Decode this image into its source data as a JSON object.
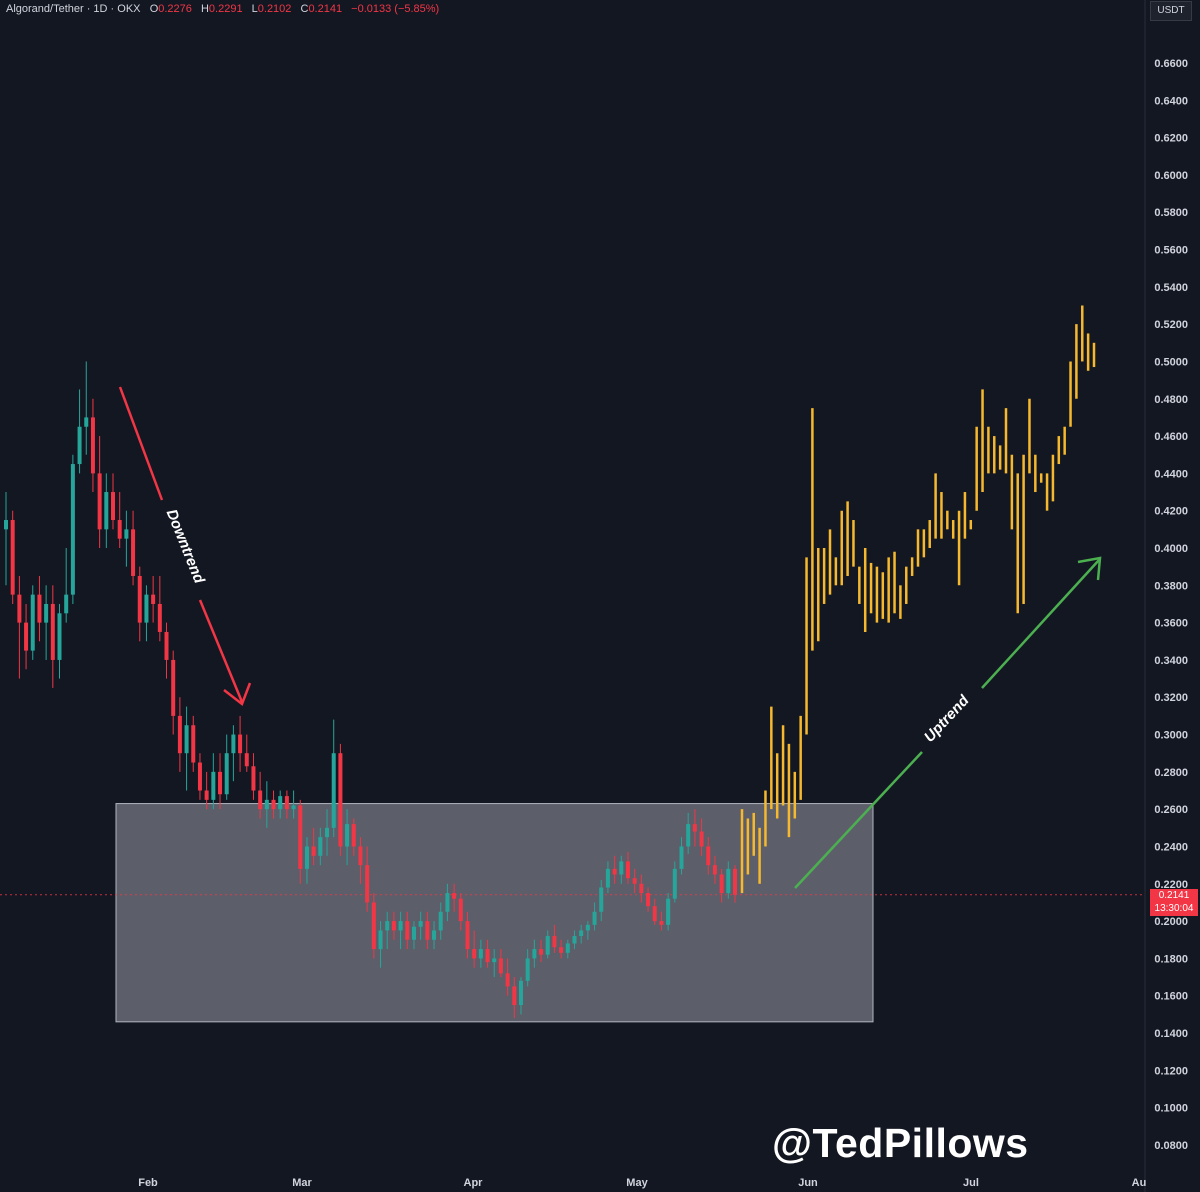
{
  "header": {
    "symbol": "Algorand/Tether · 1D · OKX",
    "o_label": "O",
    "o_value": "0.2276",
    "h_label": "H",
    "h_value": "0.2291",
    "l_label": "L",
    "l_value": "0.2102",
    "c_label": "C",
    "c_value": "0.2141",
    "change": "−0.0133 (−5.85%)"
  },
  "unit_label": "USDT",
  "last_price": {
    "value": "0.2141",
    "countdown": "13:30:04",
    "color": "#f23645"
  },
  "watermark": "@TedPillows",
  "colors": {
    "up": "#26a69a",
    "down": "#f23645",
    "projection": "#f5b82e",
    "downtrend_arrow": "#f23645",
    "uptrend_arrow": "#4caf50",
    "range_box": "#787b86"
  },
  "chart_data": {
    "type": "candlestick",
    "ylim": [
      0.07,
      0.69
    ],
    "y_ticks": [
      "0.6600",
      "0.6400",
      "0.6200",
      "0.6000",
      "0.5800",
      "0.5600",
      "0.5400",
      "0.5200",
      "0.5000",
      "0.4800",
      "0.4600",
      "0.4400",
      "0.4200",
      "0.4000",
      "0.3800",
      "0.3600",
      "0.3400",
      "0.3200",
      "0.3000",
      "0.2800",
      "0.2600",
      "0.2400",
      "0.2200",
      "0.2000",
      "0.1800",
      "0.1600",
      "0.1400",
      "0.1200",
      "0.1000",
      "0.0800"
    ],
    "x_ticks": [
      "Feb",
      "Mar",
      "Apr",
      "May",
      "Jun",
      "Jul",
      "Au"
    ],
    "annotations": [
      {
        "text": "Downtrend",
        "kind": "arrow",
        "direction": "down"
      },
      {
        "text": "Uptrend",
        "kind": "arrow",
        "direction": "up"
      }
    ],
    "range_box": {
      "from": "Feb",
      "to": "Jun",
      "high": 0.263,
      "low": 0.146
    },
    "historical": [
      {
        "o": 0.41,
        "h": 0.43,
        "l": 0.38,
        "c": 0.415
      },
      {
        "o": 0.415,
        "h": 0.42,
        "l": 0.37,
        "c": 0.375
      },
      {
        "o": 0.375,
        "h": 0.385,
        "l": 0.33,
        "c": 0.36
      },
      {
        "o": 0.36,
        "h": 0.37,
        "l": 0.335,
        "c": 0.345
      },
      {
        "o": 0.345,
        "h": 0.38,
        "l": 0.34,
        "c": 0.375
      },
      {
        "o": 0.375,
        "h": 0.385,
        "l": 0.35,
        "c": 0.36
      },
      {
        "o": 0.36,
        "h": 0.38,
        "l": 0.34,
        "c": 0.37
      },
      {
        "o": 0.37,
        "h": 0.38,
        "l": 0.325,
        "c": 0.34
      },
      {
        "o": 0.34,
        "h": 0.37,
        "l": 0.33,
        "c": 0.365
      },
      {
        "o": 0.365,
        "h": 0.4,
        "l": 0.36,
        "c": 0.375
      },
      {
        "o": 0.375,
        "h": 0.45,
        "l": 0.37,
        "c": 0.445
      },
      {
        "o": 0.445,
        "h": 0.485,
        "l": 0.44,
        "c": 0.465
      },
      {
        "o": 0.465,
        "h": 0.5,
        "l": 0.45,
        "c": 0.47
      },
      {
        "o": 0.47,
        "h": 0.48,
        "l": 0.43,
        "c": 0.44
      },
      {
        "o": 0.44,
        "h": 0.46,
        "l": 0.4,
        "c": 0.41
      },
      {
        "o": 0.41,
        "h": 0.44,
        "l": 0.4,
        "c": 0.43
      },
      {
        "o": 0.43,
        "h": 0.44,
        "l": 0.41,
        "c": 0.415
      },
      {
        "o": 0.415,
        "h": 0.43,
        "l": 0.4,
        "c": 0.405
      },
      {
        "o": 0.405,
        "h": 0.42,
        "l": 0.39,
        "c": 0.41
      },
      {
        "o": 0.41,
        "h": 0.42,
        "l": 0.38,
        "c": 0.385
      },
      {
        "o": 0.385,
        "h": 0.39,
        "l": 0.35,
        "c": 0.36
      },
      {
        "o": 0.36,
        "h": 0.38,
        "l": 0.35,
        "c": 0.375
      },
      {
        "o": 0.375,
        "h": 0.385,
        "l": 0.36,
        "c": 0.37
      },
      {
        "o": 0.37,
        "h": 0.385,
        "l": 0.35,
        "c": 0.355
      },
      {
        "o": 0.355,
        "h": 0.36,
        "l": 0.33,
        "c": 0.34
      },
      {
        "o": 0.34,
        "h": 0.345,
        "l": 0.3,
        "c": 0.31
      },
      {
        "o": 0.31,
        "h": 0.32,
        "l": 0.28,
        "c": 0.29
      },
      {
        "o": 0.29,
        "h": 0.315,
        "l": 0.27,
        "c": 0.305
      },
      {
        "o": 0.305,
        "h": 0.31,
        "l": 0.28,
        "c": 0.285
      },
      {
        "o": 0.285,
        "h": 0.29,
        "l": 0.265,
        "c": 0.27
      },
      {
        "o": 0.27,
        "h": 0.28,
        "l": 0.26,
        "c": 0.265
      },
      {
        "o": 0.265,
        "h": 0.29,
        "l": 0.26,
        "c": 0.28
      },
      {
        "o": 0.28,
        "h": 0.29,
        "l": 0.26,
        "c": 0.268
      },
      {
        "o": 0.268,
        "h": 0.3,
        "l": 0.265,
        "c": 0.29
      },
      {
        "o": 0.29,
        "h": 0.305,
        "l": 0.275,
        "c": 0.3
      },
      {
        "o": 0.3,
        "h": 0.31,
        "l": 0.28,
        "c": 0.29
      },
      {
        "o": 0.29,
        "h": 0.3,
        "l": 0.28,
        "c": 0.283
      },
      {
        "o": 0.283,
        "h": 0.29,
        "l": 0.265,
        "c": 0.27
      },
      {
        "o": 0.27,
        "h": 0.28,
        "l": 0.255,
        "c": 0.26
      },
      {
        "o": 0.26,
        "h": 0.275,
        "l": 0.25,
        "c": 0.265
      },
      {
        "o": 0.265,
        "h": 0.27,
        "l": 0.255,
        "c": 0.26
      },
      {
        "o": 0.26,
        "h": 0.27,
        "l": 0.255,
        "c": 0.267
      },
      {
        "o": 0.267,
        "h": 0.27,
        "l": 0.255,
        "c": 0.26
      },
      {
        "o": 0.26,
        "h": 0.27,
        "l": 0.255,
        "c": 0.262
      },
      {
        "o": 0.262,
        "h": 0.265,
        "l": 0.22,
        "c": 0.228
      },
      {
        "o": 0.228,
        "h": 0.245,
        "l": 0.22,
        "c": 0.24
      },
      {
        "o": 0.24,
        "h": 0.25,
        "l": 0.23,
        "c": 0.235
      },
      {
        "o": 0.235,
        "h": 0.25,
        "l": 0.23,
        "c": 0.245
      },
      {
        "o": 0.245,
        "h": 0.26,
        "l": 0.235,
        "c": 0.25
      },
      {
        "o": 0.25,
        "h": 0.308,
        "l": 0.245,
        "c": 0.29
      },
      {
        "o": 0.29,
        "h": 0.295,
        "l": 0.235,
        "c": 0.24
      },
      {
        "o": 0.24,
        "h": 0.26,
        "l": 0.23,
        "c": 0.252
      },
      {
        "o": 0.252,
        "h": 0.255,
        "l": 0.235,
        "c": 0.24
      },
      {
        "o": 0.24,
        "h": 0.245,
        "l": 0.22,
        "c": 0.23
      },
      {
        "o": 0.23,
        "h": 0.24,
        "l": 0.205,
        "c": 0.21
      },
      {
        "o": 0.21,
        "h": 0.215,
        "l": 0.18,
        "c": 0.185
      },
      {
        "o": 0.185,
        "h": 0.2,
        "l": 0.175,
        "c": 0.195
      },
      {
        "o": 0.195,
        "h": 0.205,
        "l": 0.185,
        "c": 0.2
      },
      {
        "o": 0.2,
        "h": 0.205,
        "l": 0.19,
        "c": 0.195
      },
      {
        "o": 0.195,
        "h": 0.205,
        "l": 0.185,
        "c": 0.2
      },
      {
        "o": 0.2,
        "h": 0.205,
        "l": 0.185,
        "c": 0.19
      },
      {
        "o": 0.19,
        "h": 0.2,
        "l": 0.185,
        "c": 0.197
      },
      {
        "o": 0.197,
        "h": 0.205,
        "l": 0.19,
        "c": 0.2
      },
      {
        "o": 0.2,
        "h": 0.205,
        "l": 0.185,
        "c": 0.19
      },
      {
        "o": 0.19,
        "h": 0.2,
        "l": 0.185,
        "c": 0.195
      },
      {
        "o": 0.195,
        "h": 0.21,
        "l": 0.19,
        "c": 0.205
      },
      {
        "o": 0.205,
        "h": 0.22,
        "l": 0.2,
        "c": 0.215
      },
      {
        "o": 0.215,
        "h": 0.22,
        "l": 0.205,
        "c": 0.212
      },
      {
        "o": 0.212,
        "h": 0.215,
        "l": 0.195,
        "c": 0.2
      },
      {
        "o": 0.2,
        "h": 0.205,
        "l": 0.18,
        "c": 0.185
      },
      {
        "o": 0.185,
        "h": 0.195,
        "l": 0.175,
        "c": 0.18
      },
      {
        "o": 0.18,
        "h": 0.19,
        "l": 0.175,
        "c": 0.185
      },
      {
        "o": 0.185,
        "h": 0.19,
        "l": 0.175,
        "c": 0.178
      },
      {
        "o": 0.178,
        "h": 0.185,
        "l": 0.17,
        "c": 0.18
      },
      {
        "o": 0.18,
        "h": 0.185,
        "l": 0.17,
        "c": 0.172
      },
      {
        "o": 0.172,
        "h": 0.18,
        "l": 0.16,
        "c": 0.165
      },
      {
        "o": 0.165,
        "h": 0.17,
        "l": 0.148,
        "c": 0.155
      },
      {
        "o": 0.155,
        "h": 0.17,
        "l": 0.15,
        "c": 0.168
      },
      {
        "o": 0.168,
        "h": 0.185,
        "l": 0.165,
        "c": 0.18
      },
      {
        "o": 0.18,
        "h": 0.19,
        "l": 0.175,
        "c": 0.185
      },
      {
        "o": 0.185,
        "h": 0.19,
        "l": 0.178,
        "c": 0.182
      },
      {
        "o": 0.182,
        "h": 0.195,
        "l": 0.18,
        "c": 0.192
      },
      {
        "o": 0.192,
        "h": 0.198,
        "l": 0.183,
        "c": 0.186
      },
      {
        "o": 0.186,
        "h": 0.19,
        "l": 0.18,
        "c": 0.183
      },
      {
        "o": 0.183,
        "h": 0.19,
        "l": 0.18,
        "c": 0.188
      },
      {
        "o": 0.188,
        "h": 0.195,
        "l": 0.185,
        "c": 0.192
      },
      {
        "o": 0.192,
        "h": 0.198,
        "l": 0.188,
        "c": 0.195
      },
      {
        "o": 0.195,
        "h": 0.2,
        "l": 0.19,
        "c": 0.198
      },
      {
        "o": 0.198,
        "h": 0.21,
        "l": 0.195,
        "c": 0.205
      },
      {
        "o": 0.205,
        "h": 0.222,
        "l": 0.2,
        "c": 0.218
      },
      {
        "o": 0.218,
        "h": 0.232,
        "l": 0.215,
        "c": 0.228
      },
      {
        "o": 0.228,
        "h": 0.235,
        "l": 0.22,
        "c": 0.225
      },
      {
        "o": 0.225,
        "h": 0.235,
        "l": 0.22,
        "c": 0.232
      },
      {
        "o": 0.232,
        "h": 0.237,
        "l": 0.22,
        "c": 0.223
      },
      {
        "o": 0.223,
        "h": 0.228,
        "l": 0.215,
        "c": 0.22
      },
      {
        "o": 0.22,
        "h": 0.225,
        "l": 0.21,
        "c": 0.215
      },
      {
        "o": 0.215,
        "h": 0.218,
        "l": 0.205,
        "c": 0.208
      },
      {
        "o": 0.208,
        "h": 0.212,
        "l": 0.198,
        "c": 0.2
      },
      {
        "o": 0.2,
        "h": 0.205,
        "l": 0.195,
        "c": 0.198
      },
      {
        "o": 0.198,
        "h": 0.215,
        "l": 0.195,
        "c": 0.212
      },
      {
        "o": 0.212,
        "h": 0.232,
        "l": 0.21,
        "c": 0.228
      },
      {
        "o": 0.228,
        "h": 0.245,
        "l": 0.225,
        "c": 0.24
      },
      {
        "o": 0.24,
        "h": 0.258,
        "l": 0.236,
        "c": 0.252
      },
      {
        "o": 0.252,
        "h": 0.26,
        "l": 0.24,
        "c": 0.248
      },
      {
        "o": 0.248,
        "h": 0.255,
        "l": 0.235,
        "c": 0.24
      },
      {
        "o": 0.24,
        "h": 0.245,
        "l": 0.225,
        "c": 0.23
      },
      {
        "o": 0.23,
        "h": 0.235,
        "l": 0.22,
        "c": 0.225
      },
      {
        "o": 0.225,
        "h": 0.228,
        "l": 0.21,
        "c": 0.215
      },
      {
        "o": 0.215,
        "h": 0.232,
        "l": 0.212,
        "c": 0.228
      },
      {
        "o": 0.228,
        "h": 0.23,
        "l": 0.21,
        "c": 0.2141
      }
    ],
    "projection": [
      {
        "h": 0.26,
        "l": 0.215
      },
      {
        "h": 0.255,
        "l": 0.225
      },
      {
        "h": 0.258,
        "l": 0.235
      },
      {
        "h": 0.25,
        "l": 0.22
      },
      {
        "h": 0.27,
        "l": 0.24
      },
      {
        "h": 0.315,
        "l": 0.26
      },
      {
        "h": 0.29,
        "l": 0.255
      },
      {
        "h": 0.305,
        "l": 0.262
      },
      {
        "h": 0.295,
        "l": 0.245
      },
      {
        "h": 0.28,
        "l": 0.255
      },
      {
        "h": 0.31,
        "l": 0.265
      },
      {
        "h": 0.395,
        "l": 0.3
      },
      {
        "h": 0.475,
        "l": 0.345
      },
      {
        "h": 0.4,
        "l": 0.35
      },
      {
        "h": 0.4,
        "l": 0.37
      },
      {
        "h": 0.41,
        "l": 0.375
      },
      {
        "h": 0.395,
        "l": 0.38
      },
      {
        "h": 0.42,
        "l": 0.38
      },
      {
        "h": 0.425,
        "l": 0.385
      },
      {
        "h": 0.415,
        "l": 0.39
      },
      {
        "h": 0.39,
        "l": 0.37
      },
      {
        "h": 0.4,
        "l": 0.355
      },
      {
        "h": 0.392,
        "l": 0.365
      },
      {
        "h": 0.39,
        "l": 0.36
      },
      {
        "h": 0.387,
        "l": 0.362
      },
      {
        "h": 0.395,
        "l": 0.36
      },
      {
        "h": 0.398,
        "l": 0.365
      },
      {
        "h": 0.38,
        "l": 0.362
      },
      {
        "h": 0.39,
        "l": 0.37
      },
      {
        "h": 0.395,
        "l": 0.385
      },
      {
        "h": 0.41,
        "l": 0.39
      },
      {
        "h": 0.41,
        "l": 0.395
      },
      {
        "h": 0.415,
        "l": 0.4
      },
      {
        "h": 0.44,
        "l": 0.405
      },
      {
        "h": 0.43,
        "l": 0.405
      },
      {
        "h": 0.42,
        "l": 0.41
      },
      {
        "h": 0.415,
        "l": 0.405
      },
      {
        "h": 0.42,
        "l": 0.38
      },
      {
        "h": 0.43,
        "l": 0.405
      },
      {
        "h": 0.415,
        "l": 0.41
      },
      {
        "h": 0.465,
        "l": 0.42
      },
      {
        "h": 0.485,
        "l": 0.43
      },
      {
        "h": 0.465,
        "l": 0.44
      },
      {
        "h": 0.46,
        "l": 0.44
      },
      {
        "h": 0.455,
        "l": 0.442
      },
      {
        "h": 0.475,
        "l": 0.44
      },
      {
        "h": 0.45,
        "l": 0.41
      },
      {
        "h": 0.44,
        "l": 0.365
      },
      {
        "h": 0.45,
        "l": 0.37
      },
      {
        "h": 0.48,
        "l": 0.44
      },
      {
        "h": 0.45,
        "l": 0.43
      },
      {
        "h": 0.44,
        "l": 0.435
      },
      {
        "h": 0.44,
        "l": 0.42
      },
      {
        "h": 0.45,
        "l": 0.425
      },
      {
        "h": 0.46,
        "l": 0.445
      },
      {
        "h": 0.465,
        "l": 0.45
      },
      {
        "h": 0.5,
        "l": 0.465
      },
      {
        "h": 0.52,
        "l": 0.48
      },
      {
        "h": 0.53,
        "l": 0.5
      },
      {
        "h": 0.515,
        "l": 0.495
      },
      {
        "h": 0.51,
        "l": 0.497
      }
    ]
  }
}
